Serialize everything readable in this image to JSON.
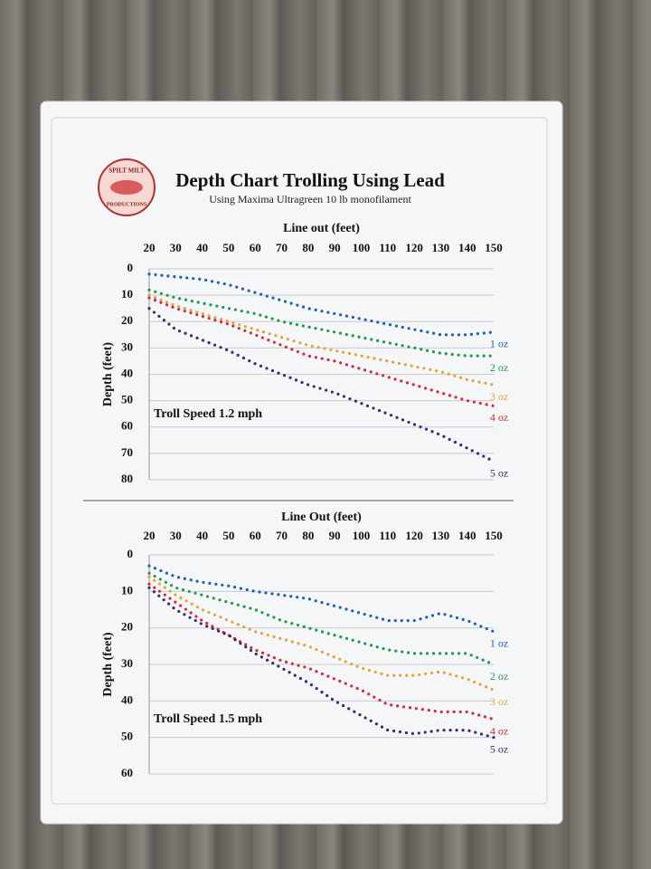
{
  "header": {
    "title": "Depth Chart Trolling Using Lead",
    "subtitle": "Using Maxima Ultragreen 10 lb monofilament",
    "logo_top": "SPILT MILT",
    "logo_bottom": "PRODUCTIONS"
  },
  "chart_data": [
    {
      "type": "line",
      "x_label": "Line out (feet)",
      "y_label": "Depth (feet)",
      "annotation": "Troll Speed 1.2 mph",
      "x": [
        20,
        30,
        40,
        50,
        60,
        70,
        80,
        90,
        100,
        110,
        120,
        130,
        140,
        150
      ],
      "xlim": [
        20,
        150
      ],
      "xticks": [
        20,
        30,
        40,
        50,
        60,
        70,
        80,
        90,
        100,
        110,
        120,
        130,
        140,
        150
      ],
      "ylim": [
        0,
        80
      ],
      "yticks": [
        0,
        10,
        20,
        30,
        40,
        50,
        60,
        70,
        80
      ],
      "y_inverted": true,
      "grid": true,
      "series": [
        {
          "name": "1 oz",
          "color": "#1f5fb8",
          "values": [
            2,
            3,
            4,
            6,
            9,
            12,
            15,
            17,
            19,
            21,
            23,
            25,
            25,
            24
          ]
        },
        {
          "name": "2 oz",
          "color": "#1f9a4a",
          "values": [
            8,
            11,
            13,
            15,
            17,
            20,
            22,
            24,
            26,
            28,
            30,
            32,
            33,
            33
          ]
        },
        {
          "name": "3 oz",
          "color": "#e3a53a",
          "values": [
            10,
            14,
            17,
            20,
            23,
            26,
            29,
            31,
            33,
            35,
            37,
            39,
            42,
            44
          ]
        },
        {
          "name": "4 oz",
          "color": "#d42a3a",
          "values": [
            11,
            15,
            18,
            21,
            25,
            29,
            33,
            35,
            38,
            41,
            44,
            47,
            50,
            52
          ]
        },
        {
          "name": "5 oz",
          "color": "#3b2a6e",
          "values": [
            15,
            23,
            27,
            31,
            36,
            40,
            44,
            47,
            51,
            55,
            59,
            63,
            68,
            73
          ]
        }
      ]
    },
    {
      "type": "line",
      "x_label": "Line Out (feet)",
      "y_label": "Depth (feet)",
      "annotation": "Troll Speed 1.5 mph",
      "x": [
        20,
        30,
        40,
        50,
        60,
        70,
        80,
        90,
        100,
        110,
        120,
        130,
        140,
        150
      ],
      "xlim": [
        20,
        150
      ],
      "xticks": [
        20,
        30,
        40,
        50,
        60,
        70,
        80,
        90,
        100,
        110,
        120,
        130,
        140,
        150
      ],
      "ylim": [
        0,
        60
      ],
      "yticks": [
        0,
        10,
        20,
        30,
        40,
        50,
        60
      ],
      "y_inverted": true,
      "grid": true,
      "series": [
        {
          "name": "1 oz",
          "color": "#1f5fb8",
          "values": [
            3,
            6,
            7.5,
            8.5,
            10,
            11,
            12,
            14,
            16,
            18,
            18,
            16,
            18,
            21
          ]
        },
        {
          "name": "2 oz",
          "color": "#1f9a4a",
          "values": [
            5,
            9,
            11,
            13,
            15,
            18,
            20,
            22,
            24,
            26,
            27,
            27,
            27,
            30
          ]
        },
        {
          "name": "3 oz",
          "color": "#e3a53a",
          "values": [
            6,
            11,
            15,
            18,
            21,
            23,
            25,
            28,
            31,
            33,
            33,
            32,
            34,
            37
          ]
        },
        {
          "name": "4 oz",
          "color": "#d42a3a",
          "values": [
            8,
            13,
            18,
            22,
            26,
            29,
            31,
            34,
            37,
            41,
            42,
            43,
            43,
            45
          ]
        },
        {
          "name": "5 oz",
          "color": "#3b2a6e",
          "values": [
            9,
            15,
            19,
            22,
            27,
            31,
            35,
            40,
            44,
            48,
            49,
            48,
            48,
            50
          ]
        }
      ]
    }
  ]
}
